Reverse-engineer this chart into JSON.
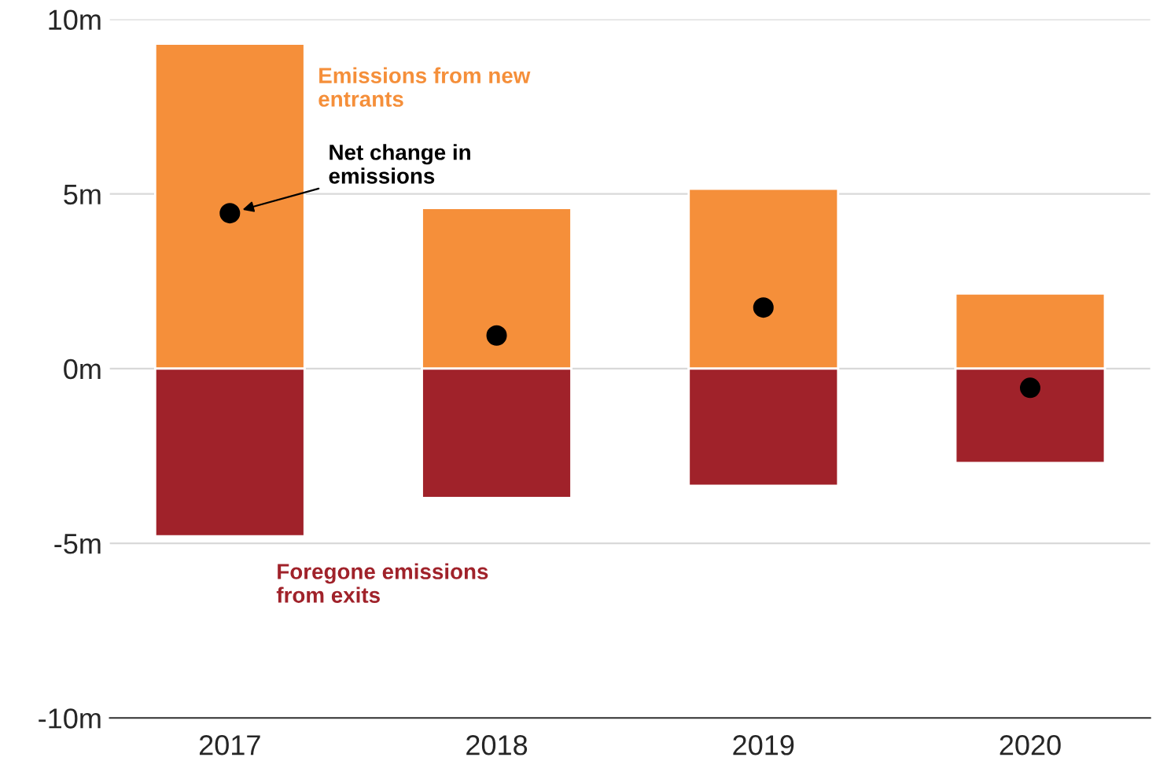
{
  "chart_data": {
    "type": "bar",
    "stacked": true,
    "categories": [
      "2017",
      "2018",
      "2019",
      "2020"
    ],
    "series": [
      {
        "name": "Emissions from new entrants",
        "color": "#f58f3a",
        "values": [
          9.3,
          4.6,
          5.15,
          2.15
        ]
      },
      {
        "name": "Foregone emissions from exits",
        "color": "#a0222a",
        "values": [
          -4.8,
          -3.7,
          -3.35,
          -2.7
        ]
      },
      {
        "name": "Net change in emissions",
        "type": "scatter",
        "color": "#000000",
        "values": [
          4.45,
          0.95,
          1.75,
          -0.55
        ]
      }
    ],
    "ylim": [
      -10,
      10
    ],
    "yticks": [
      {
        "value": -10,
        "label": "-10m"
      },
      {
        "value": -5,
        "label": "-5m"
      },
      {
        "value": 0,
        "label": "0m"
      },
      {
        "value": 5,
        "label": "5m"
      },
      {
        "value": 10,
        "label": "10m"
      }
    ],
    "grid": "y",
    "marker": "circle"
  }
}
